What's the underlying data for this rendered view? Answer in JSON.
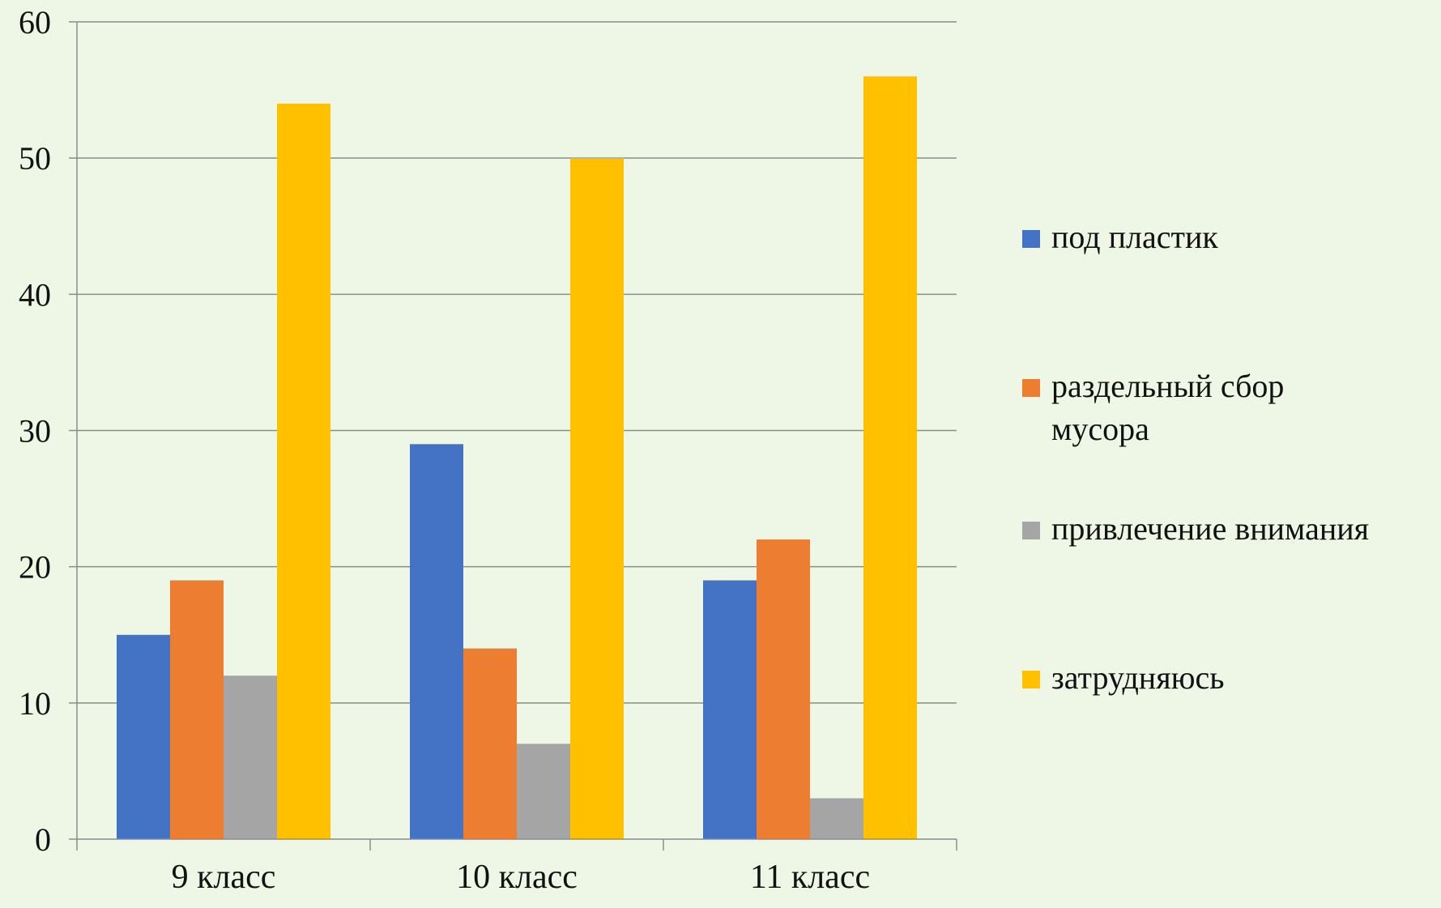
{
  "chart_data": {
    "type": "bar",
    "categories": [
      "9 класс",
      "10 класс",
      "11 класс"
    ],
    "series": [
      {
        "name": "под пластик",
        "values": [
          15,
          29,
          19
        ],
        "color": "#4472c4"
      },
      {
        "name": "раздельный сбор мусора",
        "values": [
          19,
          14,
          22
        ],
        "color": "#ed7d31"
      },
      {
        "name": "привлечение внимания",
        "values": [
          12,
          7,
          3
        ],
        "color": "#a5a5a5"
      },
      {
        "name": "затрудняюсь",
        "values": [
          54,
          50,
          56
        ],
        "color": "#ffc000"
      }
    ],
    "ylim": [
      0,
      60
    ],
    "yticks": [
      "0",
      "10",
      "20",
      "30",
      "40",
      "50",
      "60"
    ],
    "grid": true,
    "legend_position": "right",
    "legend": [
      {
        "lines": [
          "под пластик"
        ]
      },
      {
        "lines": [
          "раздельный сбор",
          "мусора"
        ]
      },
      {
        "lines": [
          "привлечение внимания"
        ]
      },
      {
        "lines": [
          "затрудняюсь"
        ]
      }
    ],
    "background": "#eef7e6",
    "gridline_color": "#8c8c8c"
  }
}
